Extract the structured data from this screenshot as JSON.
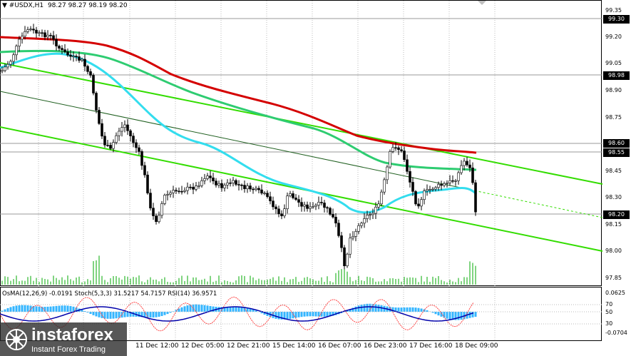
{
  "header": {
    "symbol": "▼ #USDX,H1",
    "ohlc": "98.27 98.27 98.19 98.20"
  },
  "oscillator_legend": "OsMA(12,26,9) -0.0191  Stoch(5,3,3) 31.5217 54.7157  RSI(14) 36.9571",
  "price_scale": [
    "99.35",
    "99.20",
    "99.05",
    "98.90",
    "98.75",
    "98.45",
    "98.30",
    "98.15",
    "98.00",
    "97.85"
  ],
  "price_labels": [
    {
      "text": "99.30",
      "style": "hl"
    },
    {
      "text": "98.98",
      "style": "hl"
    },
    {
      "text": "98.60",
      "style": "hl"
    },
    {
      "text": "98.55",
      "style": "hl"
    },
    {
      "text": "98.20",
      "style": "hl"
    }
  ],
  "osc_scale": [
    "0.0625",
    "70",
    "50",
    "30",
    "-0.0704"
  ],
  "time_labels": [
    "11 Dec 12:00",
    "12 Dec 05:00",
    "12 Dec 21:00",
    "15 Dec 14:00",
    "16 Dec 07:00",
    "16 Dec 23:00",
    "17 Dec 16:00",
    "18 Dec 09:00"
  ],
  "branding": {
    "name": "instaforex",
    "tagline": "Instant Forex Trading"
  },
  "colors": {
    "ma_red": "#d40000",
    "ma_green": "#2ecc71",
    "ma_cyan": "#33ddee",
    "channel": "#33dd00",
    "channel_mid": "#1a5a1a",
    "candle": "#000000",
    "volume": "#00aa00",
    "osma": "#33b5ff",
    "stoch": "#ff4444",
    "rsi": "#0000aa"
  }
}
